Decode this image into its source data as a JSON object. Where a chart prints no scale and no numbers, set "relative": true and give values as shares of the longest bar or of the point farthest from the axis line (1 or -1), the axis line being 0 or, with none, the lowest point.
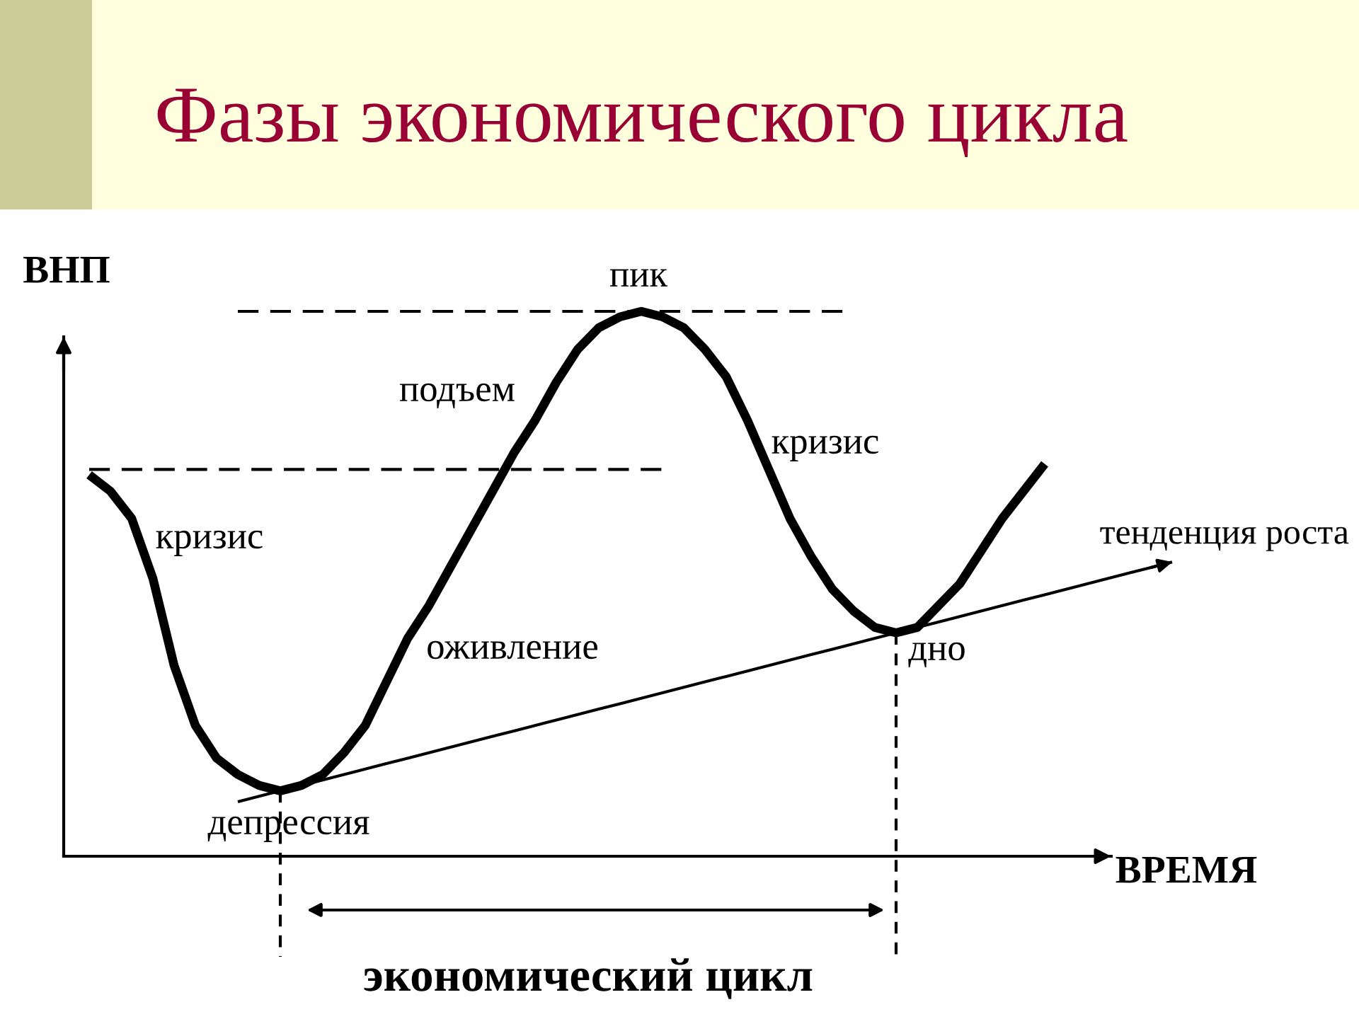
{
  "chart_data": {
    "type": "line",
    "relative": true,
    "title": "Фазы экономического цикла",
    "xlabel": "ВРЕМЯ",
    "ylabel": "ВНП",
    "categories": [
      null,
      null,
      null,
      null,
      null,
      null,
      null,
      null,
      null,
      null,
      null,
      null,
      null,
      null,
      null,
      null,
      null,
      null,
      null,
      null,
      null,
      null,
      null,
      null,
      null,
      null,
      null,
      null,
      null,
      null,
      null,
      null,
      null,
      null,
      null,
      null,
      null,
      null,
      null,
      null,
      null,
      null,
      null,
      null,
      null,
      null,
      null,
      null,
      null,
      null,
      null,
      null
    ],
    "series": [
      {
        "color": "#000000",
        "values": [
          0.7,
          0.67,
          0.62,
          0.51,
          0.35,
          0.24,
          0.18,
          0.15,
          0.13,
          0.12,
          0.13,
          0.15,
          0.19,
          0.24,
          0.32,
          0.4,
          0.46,
          0.53,
          0.6,
          0.67,
          0.74,
          0.8,
          0.87,
          0.93,
          0.97,
          0.99,
          1.0,
          0.99,
          0.97,
          0.93,
          0.88,
          0.8,
          0.71,
          0.62,
          0.55,
          0.49,
          0.45,
          0.42,
          0.41,
          0.42,
          0.46,
          0.5,
          0.56,
          0.62,
          0.67,
          0.72,
          null,
          null,
          null,
          null,
          null,
          null
        ]
      },
      {
        "name": "тенденция роста",
        "color": "#000000",
        "values": [
          null,
          null,
          null,
          null,
          null,
          null,
          null,
          0.1,
          0.11,
          0.12,
          0.13,
          0.14,
          0.15,
          0.16,
          0.17,
          0.18,
          0.19,
          0.2,
          0.21,
          0.22,
          0.23,
          0.24,
          0.25,
          0.26,
          0.27,
          0.28,
          0.29,
          0.3,
          0.31,
          0.32,
          0.33,
          0.34,
          0.35,
          0.36,
          0.37,
          0.38,
          0.39,
          0.4,
          0.41,
          0.42,
          0.43,
          0.44,
          0.45,
          0.46,
          0.47,
          0.48,
          0.49,
          0.5,
          0.51,
          0.52,
          0.53,
          0.54
        ]
      },
      {
        "line_style": "dashed",
        "color": "#000000",
        "values": [
          null,
          null,
          null,
          null,
          null,
          null,
          null,
          1.0,
          1.0,
          1.0,
          1.0,
          1.0,
          1.0,
          1.0,
          1.0,
          1.0,
          1.0,
          1.0,
          1.0,
          1.0,
          1.0,
          1.0,
          1.0,
          1.0,
          1.0,
          1.0,
          1.0,
          1.0,
          1.0,
          1.0,
          1.0,
          1.0,
          1.0,
          1.0,
          1.0,
          1.0,
          1.0,
          null,
          null,
          null,
          null,
          null,
          null,
          null,
          null,
          null,
          null,
          null,
          null,
          null,
          null,
          null
        ]
      },
      {
        "line_style": "dashed",
        "color": "#000000",
        "values": [
          0.71,
          0.71,
          0.71,
          0.71,
          0.71,
          0.71,
          0.71,
          0.71,
          0.71,
          0.71,
          0.71,
          0.71,
          0.71,
          0.71,
          0.71,
          0.71,
          0.71,
          0.71,
          0.71,
          0.71,
          0.71,
          0.71,
          0.71,
          0.71,
          0.71,
          0.71,
          0.71,
          0.71,
          null,
          null,
          null,
          null,
          null,
          null,
          null,
          null,
          null,
          null,
          null,
          null,
          null,
          null,
          null,
          null,
          null,
          null,
          null,
          null,
          null,
          null,
          null,
          null
        ]
      }
    ],
    "annotations": [
      "пик",
      "подъем",
      "кризис",
      "оживление",
      "депрессия",
      "кризис",
      "дно",
      "экономический цикл"
    ]
  }
}
